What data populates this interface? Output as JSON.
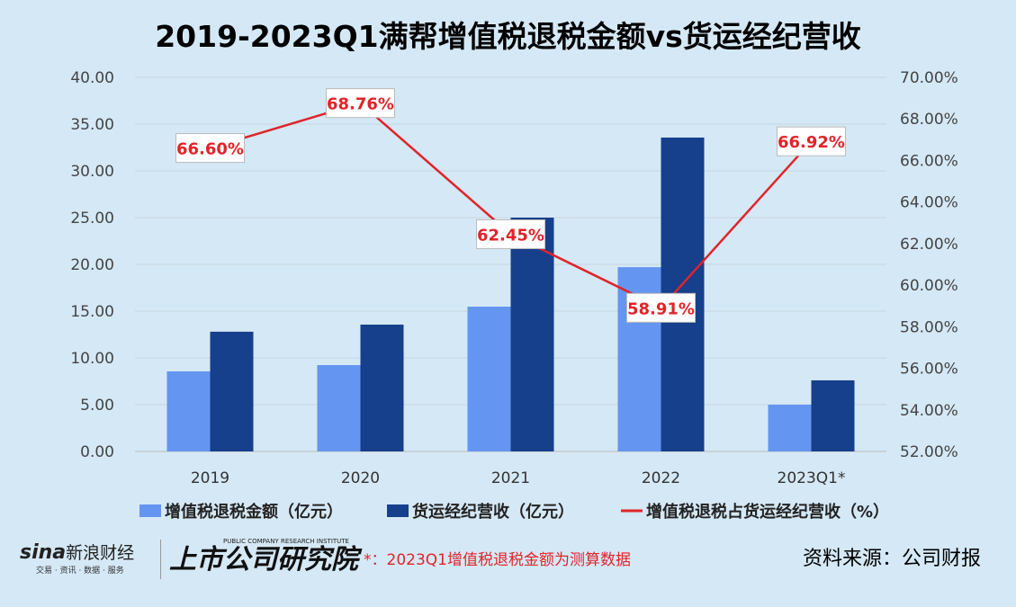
{
  "chart_data": {
    "type": "bar+line",
    "title": "2019-2023Q1满帮增值税退税金额vs货运经纪营收",
    "categories": [
      "2019",
      "2020",
      "2021",
      "2022",
      "2023Q1*"
    ],
    "series": [
      {
        "name": "增值税退税金额（亿元）",
        "type": "bar",
        "axis": "left",
        "color": "#6495f0",
        "values": [
          8.56,
          9.23,
          15.48,
          19.7,
          5.0
        ]
      },
      {
        "name": "货运经纪营收（亿元）",
        "type": "bar",
        "axis": "left",
        "color": "#163f8c",
        "values": [
          12.8,
          13.56,
          25.0,
          33.56,
          7.6
        ]
      },
      {
        "name": "增值税退税占货运经纪营收（%）",
        "type": "line",
        "axis": "right",
        "color": "#e0242a",
        "values": [
          66.6,
          68.76,
          62.45,
          58.91,
          66.92
        ],
        "labels": [
          "66.60%",
          "68.76%",
          "62.45%",
          "58.91%",
          "66.92%"
        ]
      }
    ],
    "ylim": [
      0,
      40
    ],
    "y_ticks": [
      "0.00",
      "5.00",
      "10.00",
      "15.00",
      "20.00",
      "25.00",
      "30.00",
      "35.00",
      "40.00"
    ],
    "y2lim": [
      52,
      70
    ],
    "y2_ticks": [
      "52.00%",
      "54.00%",
      "56.00%",
      "58.00%",
      "60.00%",
      "62.00%",
      "64.00%",
      "66.00%",
      "68.00%",
      "70.00%"
    ],
    "grid": true,
    "legend": "bottom"
  },
  "footer": {
    "sina_logo": "sina新浪财经 交易·资讯·数据·服务",
    "institute_logo": "上市公司研究院 PUBLIC COMPANY RESEARCH INSTITUTE",
    "note": "*：2023Q1增值税退税金额为测算数据",
    "source": "资料来源：公司财报"
  }
}
